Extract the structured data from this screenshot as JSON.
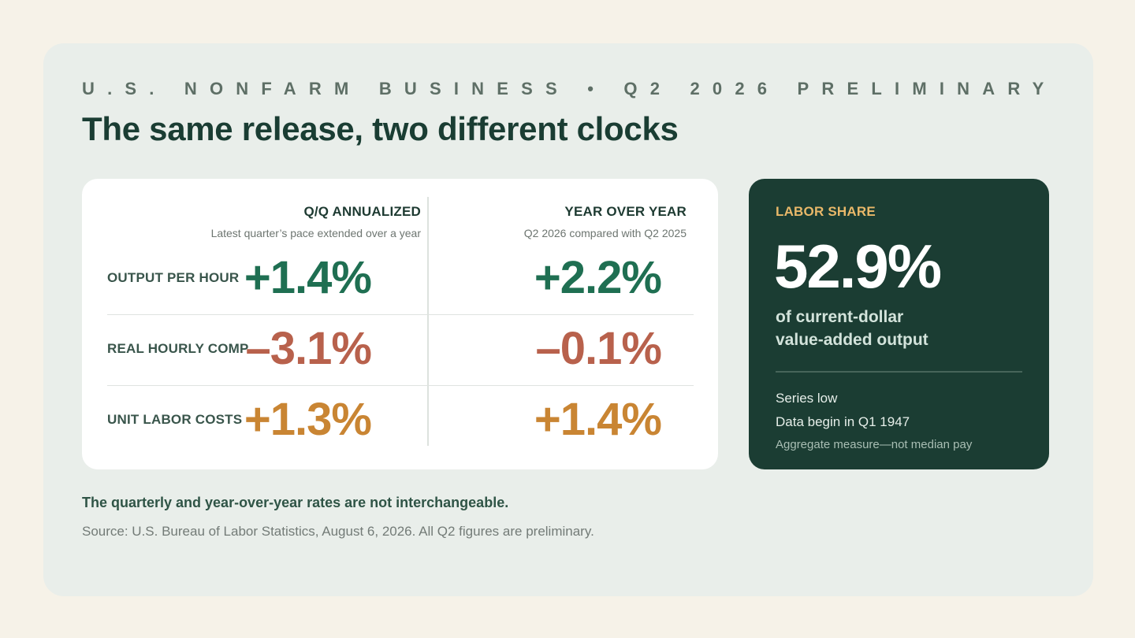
{
  "eyebrow": "U.S. NONFARM BUSINESS • Q2 2026 PRELIMINARY",
  "title": "The same release, two different clocks",
  "table": {
    "columns": [
      {
        "header": "Q/Q ANNUALIZED",
        "subheader": "Latest quarter’s pace extended over a year"
      },
      {
        "header": "YEAR OVER YEAR",
        "subheader": "Q2 2026 compared with Q2 2025"
      }
    ],
    "rows": [
      {
        "label": "OUTPUT PER HOUR",
        "qq": "+1.4%",
        "yoy": "+2.2%",
        "color": "#1f6f52"
      },
      {
        "label": "REAL HOURLY COMP.",
        "qq": "–3.1%",
        "yoy": "–0.1%",
        "color": "#b8614c"
      },
      {
        "label": "UNIT LABOR COSTS",
        "qq": "+1.3%",
        "yoy": "+1.4%",
        "color": "#c98533"
      }
    ]
  },
  "labor_share": {
    "label": "LABOR SHARE",
    "value": "52.9%",
    "description_line1": "of current-dollar",
    "description_line2": "value-added output",
    "note1": "Series low",
    "note2": "Data begin in Q1 1947",
    "note3": "Aggregate measure—not median pay",
    "accent_color": "#e9b869",
    "background_color": "#1b3d33"
  },
  "takeaway": "The quarterly and year-over-year rates are not interchangeable.",
  "source": "Source: U.S. Bureau of Labor Statistics, August 6, 2026. All Q2 figures are preliminary."
}
